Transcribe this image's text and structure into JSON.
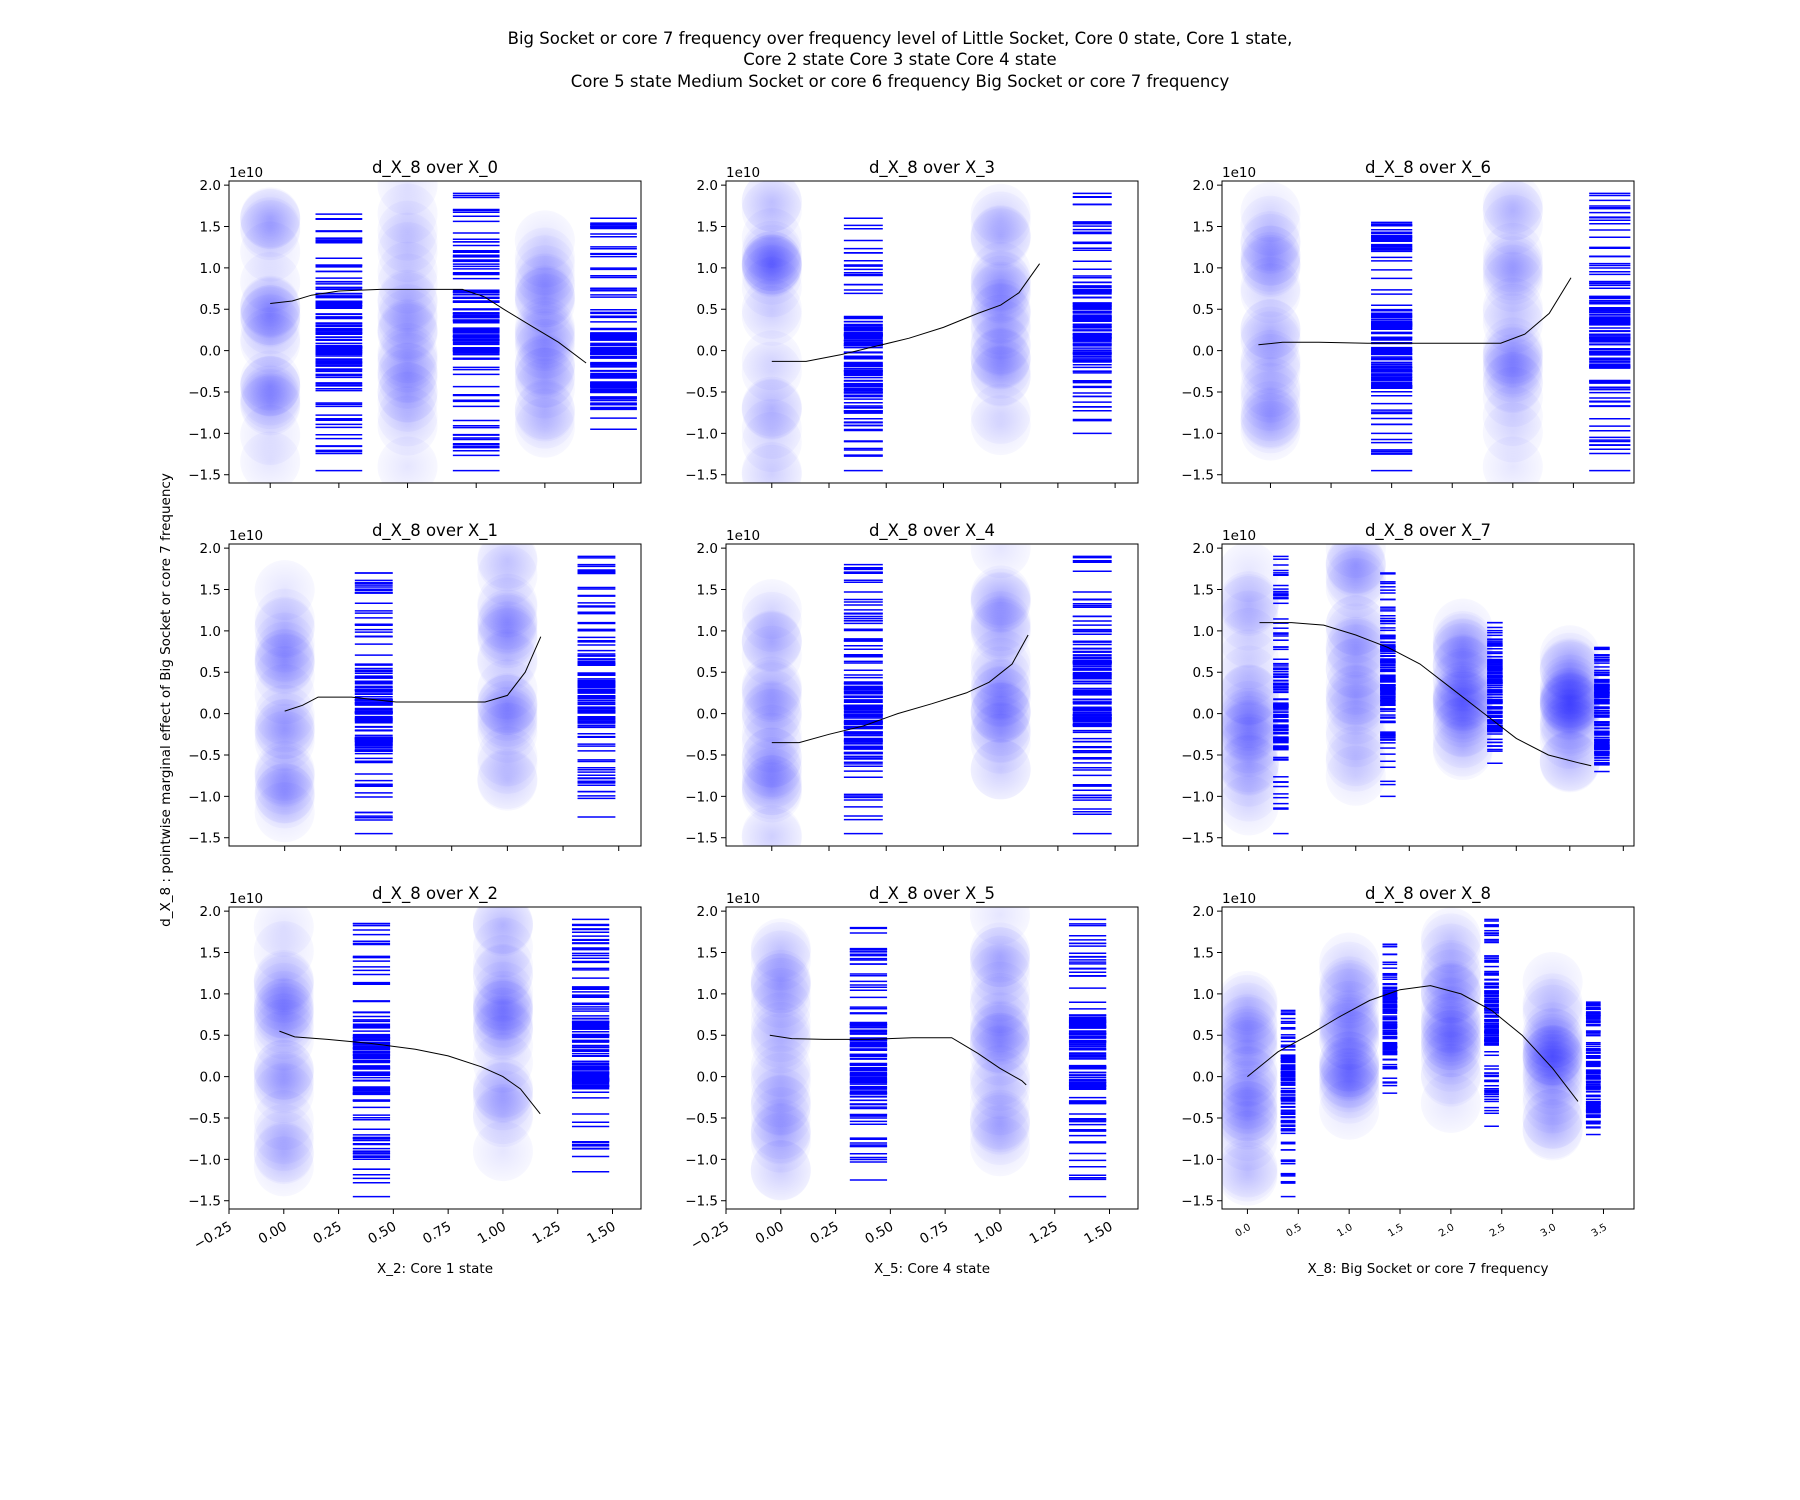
{
  "figure": {
    "suptitle_lines": [
      "Big Socket or core 7 frequency over frequency level of Little Socket, Core 0 state, Core 1 state,",
      "Core 2 state Core 3 state Core 4 state",
      "Core 5 state Medium Socket or core 6 frequency Big Socket or core 7 frequency"
    ],
    "ylabel": "d_X_8 : pointwise marginal effect of Big Socket or core 7 frequency",
    "colors": {
      "marks": "#0000ff",
      "line": "#000000",
      "frame": "#000000"
    }
  },
  "chart_data": [
    {
      "type": "scatter",
      "title": "d_X_8 over X_0",
      "xlabel": "",
      "xlim": [
        -0.15,
        1.35
      ],
      "ylim": [
        -1.6,
        2.05
      ],
      "x_ticks": [
        0,
        0.25,
        0.5,
        0.75,
        1.0,
        1.25
      ],
      "x_ticklabels": [],
      "y_ticks": [
        -1.5,
        -1.0,
        -0.5,
        0.0,
        0.5,
        1.0,
        1.5,
        2.0
      ],
      "y_ticklabels": [
        "−1.5",
        "−1.0",
        "−0.5",
        "0.0",
        "0.5",
        "1.0",
        "1.5",
        "2.0"
      ],
      "y_exponent": "1e10",
      "groups": [
        {
          "x": 0,
          "y_center": 0.2,
          "y_extent": [
            -1.4,
            1.9
          ],
          "rug_x": 0.25,
          "rug_range": [
            -1.45,
            1.65
          ]
        },
        {
          "x": 0.5,
          "y_center": 0.3,
          "y_extent": [
            -1.4,
            2.0
          ],
          "rug_x": 0.75,
          "rug_range": [
            -1.45,
            1.9
          ]
        },
        {
          "x": 1.0,
          "y_center": -0.2,
          "y_extent": [
            -1.0,
            1.4
          ],
          "rug_x": 1.25,
          "rug_range": [
            -0.95,
            1.6
          ]
        }
      ],
      "curve": {
        "x": [
          0.0,
          0.08,
          0.15,
          0.25,
          0.4,
          0.6,
          0.7,
          0.78,
          0.85,
          0.95,
          1.05,
          1.15
        ],
        "y": [
          0.57,
          0.6,
          0.67,
          0.72,
          0.74,
          0.74,
          0.74,
          0.65,
          0.5,
          0.3,
          0.1,
          -0.15
        ]
      }
    },
    {
      "type": "scatter",
      "title": "d_X_8 over X_3",
      "xlabel": "",
      "xlim": [
        -0.2,
        1.6
      ],
      "ylim": [
        -1.6,
        2.05
      ],
      "x_ticks": [
        0,
        0.25,
        0.5,
        0.75,
        1.0,
        1.25,
        1.5
      ],
      "x_ticklabels": [],
      "y_ticks": [
        -1.5,
        -1.0,
        -0.5,
        0.0,
        0.5,
        1.0,
        1.5,
        2.0
      ],
      "y_ticklabels": [
        "−1.5",
        "−1.0",
        "−0.5",
        "0.0",
        "0.5",
        "1.0",
        "1.5",
        "2.0"
      ],
      "y_exponent": "1e10",
      "groups": [
        {
          "x": 0,
          "y_center": -0.1,
          "y_extent": [
            -1.5,
            1.8
          ],
          "rug_x": 0.4,
          "rug_range": [
            -1.45,
            1.6
          ]
        },
        {
          "x": 1.0,
          "y_center": 0.3,
          "y_extent": [
            -0.9,
            2.0
          ],
          "rug_x": 1.4,
          "rug_range": [
            -1.0,
            1.9
          ]
        }
      ],
      "curve": {
        "x": [
          0.0,
          0.15,
          0.3,
          0.45,
          0.6,
          0.75,
          0.9,
          1.0,
          1.08,
          1.17
        ],
        "y": [
          -0.13,
          -0.13,
          -0.05,
          0.05,
          0.15,
          0.28,
          0.45,
          0.55,
          0.7,
          1.05
        ]
      }
    },
    {
      "type": "scatter",
      "title": "d_X_8 over X_6",
      "xlabel": "",
      "xlim": [
        -0.2,
        1.5
      ],
      "ylim": [
        -1.6,
        2.05
      ],
      "x_ticks": [
        0,
        0.25,
        0.5,
        0.75,
        1.0,
        1.25
      ],
      "x_ticklabels": [],
      "y_ticks": [
        -1.5,
        -1.0,
        -0.5,
        0.0,
        0.5,
        1.0,
        1.5,
        2.0
      ],
      "y_ticklabels": [
        "−1.5",
        "−1.0",
        "−0.5",
        "0.0",
        "0.5",
        "1.0",
        "1.5",
        "2.0"
      ],
      "y_exponent": "1e10",
      "groups": [
        {
          "x": 0,
          "y_center": 0.0,
          "y_extent": [
            -1.5,
            1.8
          ],
          "rug_x": 0.5,
          "rug_range": [
            -1.45,
            1.55
          ]
        },
        {
          "x": 1.0,
          "y_center": 0.2,
          "y_extent": [
            -1.4,
            2.0
          ],
          "rug_x": 1.4,
          "rug_range": [
            -1.45,
            1.9
          ]
        }
      ],
      "curve": {
        "x": [
          -0.05,
          0.05,
          0.2,
          0.4,
          0.6,
          0.8,
          0.95,
          1.05,
          1.15,
          1.24
        ],
        "y": [
          0.07,
          0.1,
          0.1,
          0.09,
          0.09,
          0.09,
          0.09,
          0.2,
          0.45,
          0.88
        ]
      }
    },
    {
      "type": "scatter",
      "title": "d_X_8 over X_1",
      "xlabel": "",
      "xlim": [
        -0.25,
        1.6
      ],
      "ylim": [
        -1.6,
        2.05
      ],
      "x_ticks": [
        0,
        0.25,
        0.5,
        0.75,
        1.0,
        1.25,
        1.5
      ],
      "x_ticklabels": [],
      "y_ticks": [
        -1.5,
        -1.0,
        -0.5,
        0.0,
        0.5,
        1.0,
        1.5,
        2.0
      ],
      "y_ticklabels": [
        "−1.5",
        "−1.0",
        "−0.5",
        "0.0",
        "0.5",
        "1.0",
        "1.5",
        "2.0"
      ],
      "y_exponent": "1e10",
      "groups": [
        {
          "x": 0,
          "y_center": 0.0,
          "y_extent": [
            -1.5,
            1.9
          ],
          "rug_x": 0.4,
          "rug_range": [
            -1.45,
            1.7
          ]
        },
        {
          "x": 1.0,
          "y_center": 0.3,
          "y_extent": [
            -0.9,
            2.0
          ],
          "rug_x": 1.4,
          "rug_range": [
            -1.25,
            1.9
          ]
        }
      ],
      "curve": {
        "x": [
          0.0,
          0.08,
          0.15,
          0.3,
          0.5,
          0.7,
          0.9,
          1.0,
          1.08,
          1.15
        ],
        "y": [
          0.03,
          0.1,
          0.2,
          0.2,
          0.14,
          0.14,
          0.14,
          0.22,
          0.5,
          0.93
        ]
      }
    },
    {
      "type": "scatter",
      "title": "d_X_8 over X_4",
      "xlabel": "",
      "xlim": [
        -0.2,
        1.6
      ],
      "ylim": [
        -1.6,
        2.05
      ],
      "x_ticks": [
        0,
        0.25,
        0.5,
        0.75,
        1.0,
        1.25,
        1.5
      ],
      "x_ticklabels": [],
      "y_ticks": [
        -1.5,
        -1.0,
        -0.5,
        0.0,
        0.5,
        1.0,
        1.5,
        2.0
      ],
      "y_ticklabels": [
        "−1.5",
        "−1.0",
        "−0.5",
        "0.0",
        "0.5",
        "1.0",
        "1.5",
        "2.0"
      ],
      "y_exponent": "1e10",
      "groups": [
        {
          "x": 0,
          "y_center": -0.1,
          "y_extent": [
            -1.5,
            1.9
          ],
          "rug_x": 0.4,
          "rug_range": [
            -1.45,
            1.8
          ]
        },
        {
          "x": 1.0,
          "y_center": 0.3,
          "y_extent": [
            -0.9,
            2.0
          ],
          "rug_x": 1.4,
          "rug_range": [
            -1.45,
            1.9
          ]
        }
      ],
      "curve": {
        "x": [
          0.0,
          0.12,
          0.25,
          0.4,
          0.55,
          0.7,
          0.85,
          0.95,
          1.05,
          1.12
        ],
        "y": [
          -0.35,
          -0.35,
          -0.25,
          -0.15,
          0.0,
          0.12,
          0.25,
          0.38,
          0.6,
          0.95
        ]
      }
    },
    {
      "type": "scatter",
      "title": "d_X_8 over X_7",
      "xlabel": "",
      "xlim": [
        -0.25,
        3.6
      ],
      "ylim": [
        -1.6,
        2.05
      ],
      "x_ticks": [
        0,
        0.5,
        1.0,
        1.5,
        2.0,
        2.5,
        3.0,
        3.5
      ],
      "x_ticklabels": [],
      "y_ticks": [
        -1.5,
        -1.0,
        -0.5,
        0.0,
        0.5,
        1.0,
        1.5,
        2.0
      ],
      "y_ticklabels": [
        "−1.5",
        "−1.0",
        "−0.5",
        "0.0",
        "0.5",
        "1.0",
        "1.5",
        "2.0"
      ],
      "y_exponent": "1e10",
      "groups": [
        {
          "x": 0,
          "y_center": 0.0,
          "y_extent": [
            -1.5,
            1.9
          ],
          "rug_x": 0.3,
          "rug_range": [
            -1.45,
            1.9
          ]
        },
        {
          "x": 1.0,
          "y_center": 0.5,
          "y_extent": [
            -0.9,
            2.0
          ],
          "rug_x": 1.3,
          "rug_range": [
            -1.0,
            1.7
          ]
        },
        {
          "x": 2.0,
          "y_center": 0.2,
          "y_extent": [
            -0.5,
            1.4
          ],
          "rug_x": 2.3,
          "rug_range": [
            -0.6,
            1.1
          ]
        },
        {
          "x": 3.0,
          "y_center": -0.1,
          "y_extent": [
            -0.8,
            1.0
          ],
          "rug_x": 3.3,
          "rug_range": [
            -0.7,
            0.8
          ]
        }
      ],
      "curve": {
        "x": [
          0.1,
          0.4,
          0.7,
          1.0,
          1.3,
          1.6,
          1.9,
          2.2,
          2.5,
          2.8,
          3.1,
          3.2
        ],
        "y": [
          1.1,
          1.1,
          1.07,
          0.95,
          0.8,
          0.6,
          0.3,
          0.0,
          -0.3,
          -0.5,
          -0.6,
          -0.63
        ]
      }
    },
    {
      "type": "scatter",
      "title": "d_X_8 over X_2",
      "xlabel": "X_2: Core 1 state",
      "xlim": [
        -0.25,
        1.63
      ],
      "ylim": [
        -1.6,
        2.05
      ],
      "x_ticks": [
        -0.25,
        0.0,
        0.25,
        0.5,
        0.75,
        1.0,
        1.25,
        1.5
      ],
      "x_ticklabels": [
        "−0.25",
        "0.00",
        "0.25",
        "0.50",
        "0.75",
        "1.00",
        "1.25",
        "1.50"
      ],
      "y_ticks": [
        -1.5,
        -1.0,
        -0.5,
        0.0,
        0.5,
        1.0,
        1.5,
        2.0
      ],
      "y_ticklabels": [
        "−1.5",
        "−1.0",
        "−0.5",
        "0.0",
        "0.5",
        "1.0",
        "1.5",
        "2.0"
      ],
      "y_exponent": "1e10",
      "groups": [
        {
          "x": 0,
          "y_center": 0.2,
          "y_extent": [
            -1.5,
            1.9
          ],
          "rug_x": 0.4,
          "rug_range": [
            -1.45,
            1.85
          ]
        },
        {
          "x": 1.0,
          "y_center": 0.3,
          "y_extent": [
            -0.9,
            2.0
          ],
          "rug_x": 1.4,
          "rug_range": [
            -1.15,
            1.9
          ]
        }
      ],
      "curve": {
        "x": [
          -0.02,
          0.05,
          0.2,
          0.4,
          0.6,
          0.75,
          0.9,
          1.0,
          1.08,
          1.17
        ],
        "y": [
          0.55,
          0.48,
          0.45,
          0.4,
          0.33,
          0.25,
          0.12,
          0.0,
          -0.15,
          -0.45
        ]
      }
    },
    {
      "type": "scatter",
      "title": "d_X_8 over X_5",
      "xlabel": "X_5: Core 4 state",
      "xlim": [
        -0.25,
        1.63
      ],
      "ylim": [
        -1.6,
        2.05
      ],
      "x_ticks": [
        -0.25,
        0.0,
        0.25,
        0.5,
        0.75,
        1.0,
        1.25,
        1.5
      ],
      "x_ticklabels": [
        "−0.25",
        "0.00",
        "0.25",
        "0.50",
        "0.75",
        "1.00",
        "1.25",
        "1.50"
      ],
      "y_ticks": [
        -1.5,
        -1.0,
        -0.5,
        0.0,
        0.5,
        1.0,
        1.5,
        2.0
      ],
      "y_ticklabels": [
        "−1.5",
        "−1.0",
        "−0.5",
        "0.0",
        "0.5",
        "1.0",
        "1.5",
        "2.0"
      ],
      "y_exponent": "1e10",
      "groups": [
        {
          "x": 0,
          "y_center": 0.2,
          "y_extent": [
            -1.5,
            1.9
          ],
          "rug_x": 0.4,
          "rug_range": [
            -1.25,
            1.8
          ]
        },
        {
          "x": 1.0,
          "y_center": 0.3,
          "y_extent": [
            -0.9,
            2.0
          ],
          "rug_x": 1.4,
          "rug_range": [
            -1.45,
            1.9
          ]
        }
      ],
      "curve": {
        "x": [
          -0.05,
          0.05,
          0.2,
          0.4,
          0.6,
          0.78,
          0.9,
          1.0,
          1.1,
          1.12
        ],
        "y": [
          0.5,
          0.46,
          0.45,
          0.45,
          0.47,
          0.47,
          0.28,
          0.1,
          -0.05,
          -0.1
        ]
      }
    },
    {
      "type": "scatter",
      "title": "d_X_8 over X_8",
      "xlabel": "X_8: Big Socket or core 7 frequency",
      "xlim": [
        -0.25,
        3.8
      ],
      "ylim": [
        -1.6,
        2.05
      ],
      "x_ticks": [
        0.0,
        0.5,
        1.0,
        1.5,
        2.0,
        2.5,
        3.0,
        3.5
      ],
      "x_ticklabels": [
        "0.0",
        "0.5",
        "1.0",
        "1.5",
        "2.0",
        "2.5",
        "3.0",
        "3.5"
      ],
      "y_ticks": [
        -1.5,
        -1.0,
        -0.5,
        0.0,
        0.5,
        1.0,
        1.5,
        2.0
      ],
      "y_ticklabels": [
        "−1.5",
        "−1.0",
        "−0.5",
        "0.0",
        "0.5",
        "1.0",
        "1.5",
        "2.0"
      ],
      "y_exponent": "1e10",
      "groups": [
        {
          "x": 0,
          "y_center": -0.2,
          "y_extent": [
            -1.5,
            1.0
          ],
          "rug_x": 0.4,
          "rug_range": [
            -1.45,
            0.8
          ]
        },
        {
          "x": 1.0,
          "y_center": 0.7,
          "y_extent": [
            -0.4,
            1.5
          ],
          "rug_x": 1.4,
          "rug_range": [
            -0.2,
            1.6
          ]
        },
        {
          "x": 2.0,
          "y_center": 0.8,
          "y_extent": [
            -0.6,
            2.0
          ],
          "rug_x": 2.4,
          "rug_range": [
            -0.6,
            1.9
          ]
        },
        {
          "x": 3.0,
          "y_center": -0.1,
          "y_extent": [
            -0.7,
            1.2
          ],
          "rug_x": 3.4,
          "rug_range": [
            -0.7,
            0.9
          ]
        }
      ],
      "curve": {
        "x": [
          0.0,
          0.3,
          0.6,
          0.9,
          1.2,
          1.5,
          1.8,
          2.1,
          2.4,
          2.7,
          3.0,
          3.25
        ],
        "y": [
          0.0,
          0.3,
          0.5,
          0.72,
          0.92,
          1.05,
          1.1,
          1.0,
          0.8,
          0.5,
          0.1,
          -0.3
        ]
      }
    }
  ]
}
